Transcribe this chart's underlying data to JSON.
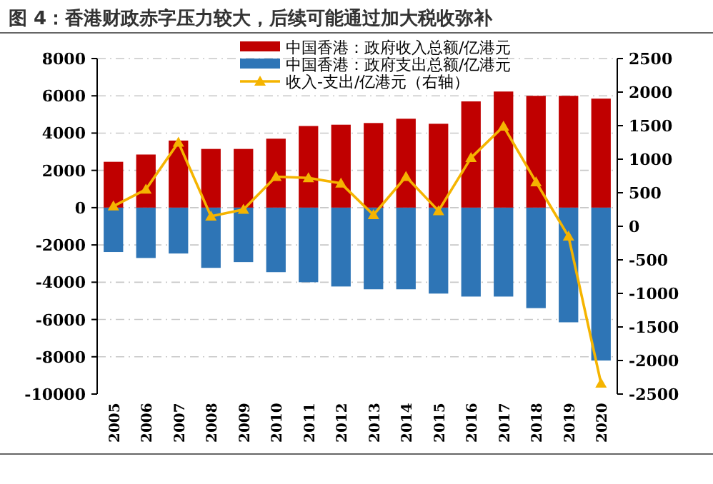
{
  "chart_data": {
    "type": "bar",
    "title": "图 4：香港财政赤字压力较大，后续可能通过加大税收弥补",
    "categories": [
      "2005",
      "2006",
      "2007",
      "2008",
      "2009",
      "2010",
      "2011",
      "2012",
      "2013",
      "2014",
      "2015",
      "2016",
      "2017",
      "2018",
      "2019",
      "2020"
    ],
    "stacked": true,
    "series": [
      {
        "name": "中国香港：政府收入总额/亿港元",
        "color": "#c00000",
        "values": [
          2460,
          2850,
          3600,
          3150,
          3150,
          3700,
          4380,
          4450,
          4540,
          4770,
          4500,
          5700,
          6230,
          6000,
          6000,
          5850
        ]
      },
      {
        "name": "中国香港：政府支出总额/亿港元",
        "color": "#2e75b6",
        "values": [
          -2380,
          -2700,
          -2460,
          -3230,
          -2920,
          -3460,
          -4000,
          -4230,
          -4380,
          -4380,
          -4610,
          -4770,
          -4770,
          -5390,
          -6150,
          -8200
        ]
      },
      {
        "name": "收入-支出/亿港元（右轴）",
        "color": "#f5b400",
        "type": "line",
        "axis": "y2",
        "marker": "triangle",
        "values": [
          300,
          550,
          1250,
          150,
          250,
          740,
          720,
          640,
          170,
          740,
          230,
          1020,
          1490,
          660,
          -150,
          -2340
        ]
      }
    ],
    "ylim": [
      -10000,
      8000
    ],
    "yticks": [
      -10000,
      -8000,
      -6000,
      -4000,
      -2000,
      0,
      2000,
      4000,
      6000,
      8000
    ],
    "y2lim": [
      -2500,
      2500
    ],
    "y2ticks": [
      -2500,
      -2000,
      -1500,
      -1000,
      -500,
      0,
      500,
      1000,
      1500,
      2000,
      2500
    ],
    "grid": "y",
    "legend": "top"
  }
}
